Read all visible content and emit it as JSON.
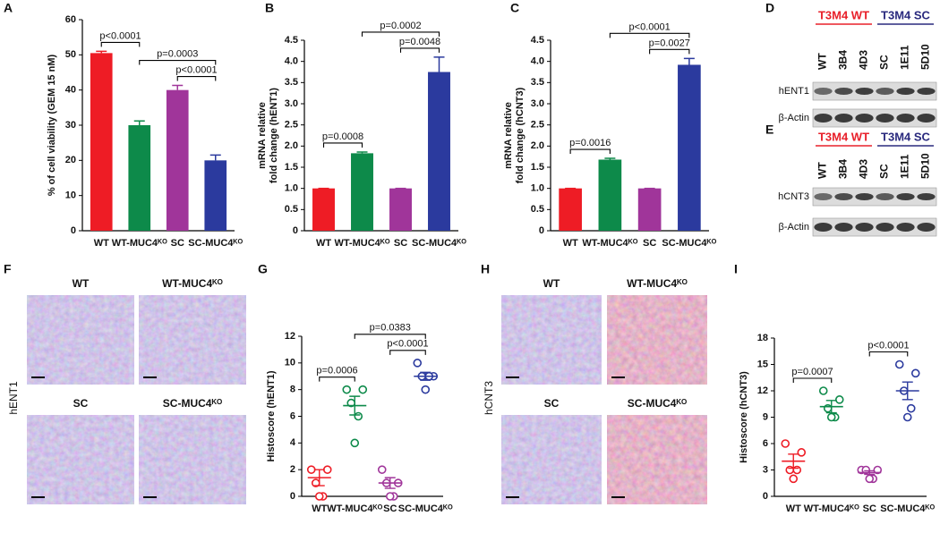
{
  "chart_data": [
    {
      "type": "bar",
      "panel": "A",
      "ylabel": [
        "% of cell viability (GEM 15 nM)"
      ],
      "categories": [
        "WT",
        "WT-MUC4ᴷᴼ",
        "SC",
        "SC-MUC4ᴷᴼ"
      ],
      "values": [
        50.5,
        30,
        40,
        20
      ],
      "errors": [
        0.5,
        1.2,
        1.3,
        1.5
      ],
      "colors": [
        "#ee1c25",
        "#0d8a4a",
        "#a0359a",
        "#2b3a9e"
      ],
      "ylim": [
        0,
        60
      ],
      "yticks": [
        0,
        10,
        20,
        30,
        40,
        50,
        60
      ],
      "comparisons": [
        {
          "label": "p<0.0001",
          "between": [
            0,
            1
          ]
        },
        {
          "label": "p=0.0003",
          "between": [
            1,
            3
          ]
        },
        {
          "label": "p<0.0001",
          "between": [
            2,
            3
          ]
        }
      ]
    },
    {
      "type": "bar",
      "panel": "B",
      "ylabel": [
        "mRNA relative",
        "fold change (hENT1)"
      ],
      "categories": [
        "WT",
        "WT-MUC4ᴷᴼ",
        "SC",
        "SC-MUC4ᴷᴼ"
      ],
      "values": [
        1,
        1.83,
        1,
        3.75
      ],
      "errors": [
        0,
        0.03,
        0,
        0.35
      ],
      "colors": [
        "#ee1c25",
        "#0d8a4a",
        "#a0359a",
        "#2b3a9e"
      ],
      "ylim": [
        0,
        4.5
      ],
      "yticks": [
        0,
        0.5,
        {
          "value": 1,
          "label": "1.0"
        },
        1.5,
        {
          "value": 2,
          "label": "2.0"
        },
        2.5,
        {
          "value": 3,
          "label": "3.0"
        },
        3.5,
        {
          "value": 4,
          "label": "4.0"
        },
        4.5
      ],
      "comparisons": [
        {
          "label": "p=0.0008",
          "between": [
            0,
            1
          ]
        },
        {
          "label": "p=0.0002",
          "between": [
            1,
            3
          ]
        },
        {
          "label": "p=0.0048",
          "between": [
            2,
            3
          ]
        }
      ]
    },
    {
      "type": "bar",
      "panel": "C",
      "ylabel": [
        "mRNA relative",
        "fold change (hCNT3)"
      ],
      "categories": [
        "WT",
        "WT-MUC4ᴷᴼ",
        "SC",
        "SC-MUC4ᴷᴼ"
      ],
      "values": [
        1,
        1.68,
        1,
        3.92
      ],
      "errors": [
        0,
        0.03,
        0,
        0.15
      ],
      "colors": [
        "#ee1c25",
        "#0d8a4a",
        "#a0359a",
        "#2b3a9e"
      ],
      "ylim": [
        0,
        4.5
      ],
      "yticks": [
        0,
        0.5,
        {
          "value": 1,
          "label": "1.0"
        },
        1.5,
        {
          "value": 2,
          "label": "2.0"
        },
        2.5,
        {
          "value": 3,
          "label": "3.0"
        },
        3.5,
        {
          "value": 4,
          "label": "4.0"
        },
        4.5
      ],
      "comparisons": [
        {
          "label": "p=0.0016",
          "between": [
            0,
            1
          ]
        },
        {
          "label": "p<0.0001",
          "between": [
            1,
            3
          ]
        },
        {
          "label": "p=0.0027",
          "between": [
            2,
            3
          ]
        }
      ]
    },
    {
      "type": "dot",
      "panel": "G",
      "ylabel": [
        "Histoscore (hENT1)"
      ],
      "categories": [
        "WT",
        "WT-MUC4ᴷᴼ",
        "SC",
        "SC-MUC4ᴷᴼ"
      ],
      "points": [
        [
          2,
          2,
          1,
          0,
          0
        ],
        [
          8,
          8,
          7,
          6,
          4
        ],
        [
          2,
          1,
          1,
          0,
          0
        ],
        [
          10,
          9,
          9,
          9,
          8
        ]
      ],
      "means": [
        1.4,
        6.8,
        1,
        9
      ],
      "errors": [
        0.6,
        0.7,
        0.4,
        0.3
      ],
      "colors": [
        "#ee1c25",
        "#0d8a4a",
        "#a0359a",
        "#2b3a9e"
      ],
      "ylim": [
        0,
        12
      ],
      "yticks": [
        0,
        2,
        4,
        6,
        8,
        10,
        12
      ],
      "comparisons": [
        {
          "label": "p=0.0006",
          "between": [
            0,
            1
          ]
        },
        {
          "label": "p=0.0383",
          "between": [
            1,
            3
          ]
        },
        {
          "label": "p<0.0001",
          "between": [
            2,
            3
          ]
        }
      ]
    },
    {
      "type": "dot",
      "panel": "I",
      "ylabel": [
        "Histoscore (hCNT3)"
      ],
      "categories": [
        "WT",
        "WT-MUC4ᴷᴼ",
        "SC",
        "SC-MUC4ᴷᴼ"
      ],
      "points": [
        [
          6,
          5,
          3,
          3,
          2
        ],
        [
          12,
          11,
          10,
          9,
          9
        ],
        [
          3,
          3,
          3,
          2,
          2
        ],
        [
          15,
          14,
          12,
          10,
          9
        ]
      ],
      "means": [
        4,
        10.2,
        2.7,
        12
      ],
      "errors": [
        0.8,
        0.7,
        0.2,
        1
      ],
      "colors": [
        "#ee1c25",
        "#0d8a4a",
        "#a0359a",
        "#2b3a9e"
      ],
      "ylim": [
        0,
        18
      ],
      "yticks": [
        0,
        3,
        6,
        9,
        12,
        15,
        18
      ],
      "comparisons": [
        {
          "label": "p=0.0007",
          "between": [
            0,
            1
          ]
        },
        {
          "label": "p<0.0001",
          "between": [
            2,
            3
          ]
        }
      ]
    }
  ],
  "blots": [
    {
      "panel": "D",
      "groups": [
        {
          "label": "T3M4 WT",
          "color": "#e8202a",
          "lanes": [
            "WT",
            "3B4",
            "4D3"
          ]
        },
        {
          "label": "T3M4 SC",
          "color": "#2a2a7e",
          "lanes": [
            "SC",
            "1E11",
            "5D10"
          ]
        }
      ],
      "rows": [
        "hENT1",
        "β-Actin"
      ]
    },
    {
      "panel": "E",
      "groups": [
        {
          "label": "T3M4 WT",
          "color": "#e8202a",
          "lanes": [
            "WT",
            "3B4",
            "4D3"
          ]
        },
        {
          "label": "T3M4 SC",
          "color": "#2a2a7e",
          "lanes": [
            "SC",
            "1E11",
            "5D10"
          ]
        }
      ],
      "rows": [
        "hCNT3",
        "β-Actin"
      ]
    }
  ],
  "histology": [
    {
      "panel": "F",
      "row_label": "hENT1",
      "images": [
        "WT",
        "WT-MUC4ᴷᴼ",
        "SC",
        "SC-MUC4ᴷᴼ"
      ]
    },
    {
      "panel": "H",
      "row_label": "hCNT3",
      "images": [
        "WT",
        "WT-MUC4ᴷᴼ",
        "SC",
        "SC-MUC4ᴷᴼ"
      ]
    }
  ]
}
